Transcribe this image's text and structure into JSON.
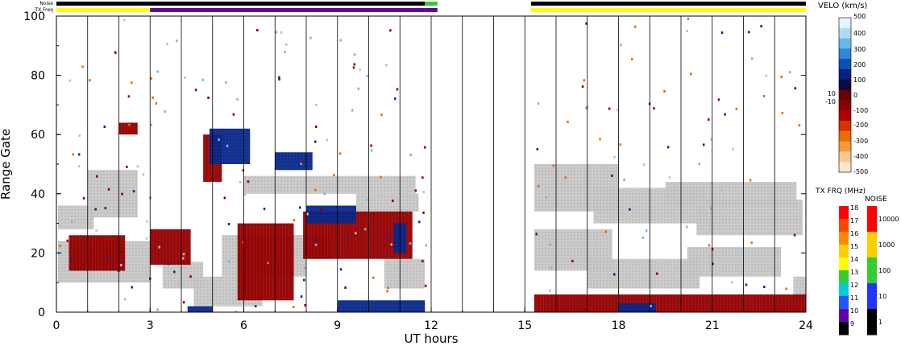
{
  "chart_data": {
    "type": "heatmap",
    "xlabel": "UT hours",
    "ylabel": "Range Gate",
    "x_ticks": [
      0,
      3,
      6,
      9,
      12,
      15,
      18,
      21,
      24
    ],
    "y_ticks": [
      0,
      20,
      40,
      60,
      80,
      100
    ],
    "xlim": [
      0,
      24
    ],
    "ylim": [
      0,
      100
    ],
    "grid": "vertical lines every hour",
    "no_data_interval_ut": [
      11.9,
      15.3
    ],
    "status_bars": {
      "noise_label": "Noise",
      "txfreq_label": "TX Freq",
      "noise_segments": [
        {
          "from": 0,
          "to": 11.8,
          "color": "#000000"
        },
        {
          "from": 11.8,
          "to": 12.2,
          "color": "#33cc33"
        },
        {
          "from": 15.2,
          "to": 24,
          "color": "#000000"
        }
      ],
      "txfreq_segments": [
        {
          "from": 0,
          "to": 3.0,
          "color": "#ffff00"
        },
        {
          "from": 3.0,
          "to": 11.8,
          "color": "#660099"
        },
        {
          "from": 11.8,
          "to": 12.2,
          "color": "#660099"
        },
        {
          "from": 15.2,
          "to": 24,
          "color": "#ffff00"
        }
      ]
    },
    "velocity_scale": {
      "title": "VELO (km/s)",
      "tick_labels": [
        "500",
        "400",
        "300",
        "200",
        "100",
        "10",
        "0",
        "-10",
        "-100",
        "-200",
        "-300",
        "-400",
        "-500"
      ],
      "colors_top_to_bottom": [
        "#e6f4ff",
        "#aedcf7",
        "#6ab8ea",
        "#2f86d6",
        "#0b4fb8",
        "#061f80",
        "#0a0a45",
        "#6a0000",
        "#8b0000",
        "#b00000",
        "#d43300",
        "#f06a00",
        "#f59b3a",
        "#f7c896",
        "#fbe6cc"
      ]
    },
    "txfreq_scale": {
      "title": "TX FRQ (MHz)",
      "tick_labels": [
        "18",
        "17",
        "16",
        "15",
        "14",
        "13",
        "12",
        "11",
        "10",
        "9"
      ],
      "colors_top_to_bottom": [
        "#ff0000",
        "#ff4400",
        "#ff8800",
        "#ffcc00",
        "#ffff00",
        "#33cc33",
        "#00ccdd",
        "#2255ff",
        "#6600aa",
        "#000000"
      ]
    },
    "noise_scale": {
      "title": "NOISE",
      "tick_labels": [
        "10000",
        "1000",
        "100",
        "10",
        "1"
      ],
      "colors_top_to_bottom": [
        "#ff0000",
        "#ffcc00",
        "#33cc33",
        "#2233ff",
        "#000000"
      ]
    },
    "series": [
      {
        "kind": "ground-scatter",
        "color": "#c0c0c0",
        "patches": [
          {
            "t0": 0.05,
            "t1": 3.0,
            "g0": 10,
            "g1": 24
          },
          {
            "t0": 0.05,
            "t1": 1.2,
            "g0": 28,
            "g1": 36
          },
          {
            "t0": 1.0,
            "t1": 2.6,
            "g0": 32,
            "g1": 48
          },
          {
            "t0": 3.4,
            "t1": 4.7,
            "g0": 8,
            "g1": 17
          },
          {
            "t0": 4.4,
            "t1": 6.6,
            "g0": 2,
            "g1": 12
          },
          {
            "t0": 5.3,
            "t1": 8.0,
            "g0": 12,
            "g1": 26
          },
          {
            "t0": 7.5,
            "t1": 8.8,
            "g0": 18,
            "g1": 26
          },
          {
            "t0": 9.6,
            "t1": 11.6,
            "g0": 34,
            "g1": 40
          },
          {
            "t0": 10.5,
            "t1": 11.8,
            "g0": 8,
            "g1": 18
          },
          {
            "t0": 6.0,
            "t1": 11.5,
            "g0": 40,
            "g1": 46
          },
          {
            "t0": 15.3,
            "t1": 18.0,
            "g0": 34,
            "g1": 50
          },
          {
            "t0": 17.2,
            "t1": 20.8,
            "g0": 30,
            "g1": 42
          },
          {
            "t0": 20.5,
            "t1": 23.9,
            "g0": 26,
            "g1": 38
          },
          {
            "t0": 19.5,
            "t1": 23.7,
            "g0": 36,
            "g1": 44
          },
          {
            "t0": 15.3,
            "t1": 17.8,
            "g0": 14,
            "g1": 28
          },
          {
            "t0": 17.0,
            "t1": 20.6,
            "g0": 8,
            "g1": 18
          },
          {
            "t0": 20.2,
            "t1": 23.2,
            "g0": 12,
            "g1": 22
          },
          {
            "t0": 23.6,
            "t1": 24.0,
            "g0": 4,
            "g1": 12
          }
        ]
      },
      {
        "kind": "velocity-negative",
        "color": "#8b0000",
        "patches": [
          {
            "t0": 3.0,
            "t1": 4.3,
            "g0": 16,
            "g1": 28
          },
          {
            "t0": 5.8,
            "t1": 7.6,
            "g0": 4,
            "g1": 30
          },
          {
            "t0": 7.9,
            "t1": 11.4,
            "g0": 18,
            "g1": 34
          },
          {
            "t0": 4.7,
            "t1": 5.3,
            "g0": 44,
            "g1": 60
          },
          {
            "t0": 0.4,
            "t1": 2.2,
            "g0": 14,
            "g1": 26
          },
          {
            "t0": 15.3,
            "t1": 24.0,
            "g0": 0,
            "g1": 6
          },
          {
            "t0": 2.0,
            "t1": 2.6,
            "g0": 60,
            "g1": 64
          }
        ]
      },
      {
        "kind": "velocity-positive",
        "color": "#0a2a8c",
        "patches": [
          {
            "t0": 8.0,
            "t1": 9.6,
            "g0": 30,
            "g1": 36
          },
          {
            "t0": 10.8,
            "t1": 11.2,
            "g0": 20,
            "g1": 30
          },
          {
            "t0": 4.9,
            "t1": 6.2,
            "g0": 50,
            "g1": 62
          },
          {
            "t0": 4.2,
            "t1": 5.0,
            "g0": 0,
            "g1": 2
          },
          {
            "t0": 9.0,
            "t1": 11.8,
            "g0": 0,
            "g1": 4
          },
          {
            "t0": 18.0,
            "t1": 19.2,
            "g0": 0,
            "g1": 3
          },
          {
            "t0": 7.0,
            "t1": 8.2,
            "g0": 48,
            "g1": 54
          }
        ]
      }
    ]
  }
}
